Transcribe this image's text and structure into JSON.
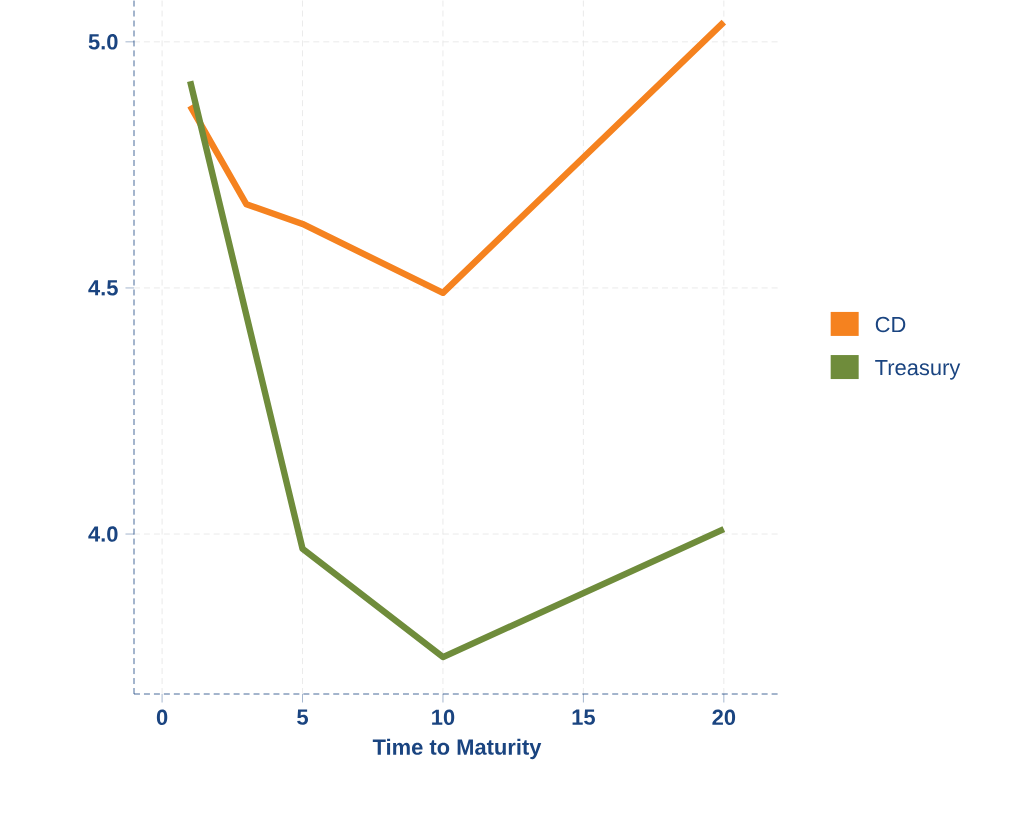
{
  "chart_data": {
    "type": "line",
    "xlabel": "Time to Maturity",
    "series": [
      {
        "name": "CD",
        "color": "#f5821f",
        "x": [
          1,
          3,
          5,
          10,
          20
        ],
        "values": [
          4.87,
          4.67,
          4.63,
          4.49,
          5.04
        ]
      },
      {
        "name": "Treasury",
        "color": "#6f8c3b",
        "x": [
          1,
          5,
          10,
          20
        ],
        "values": [
          4.92,
          3.97,
          3.75,
          4.01
        ]
      }
    ],
    "xlim": [
      -1,
      22
    ],
    "ylim": [
      3.675,
      5.085
    ],
    "xticks": [
      0,
      5,
      10,
      15,
      20
    ],
    "yticks": [
      {
        "value": 4.0,
        "label": "4.0"
      },
      {
        "value": 4.5,
        "label": "4.5"
      },
      {
        "value": 5.0,
        "label": "5.0"
      }
    ],
    "grid": true,
    "legend": "right",
    "marker": "none",
    "line_style": "solid"
  }
}
